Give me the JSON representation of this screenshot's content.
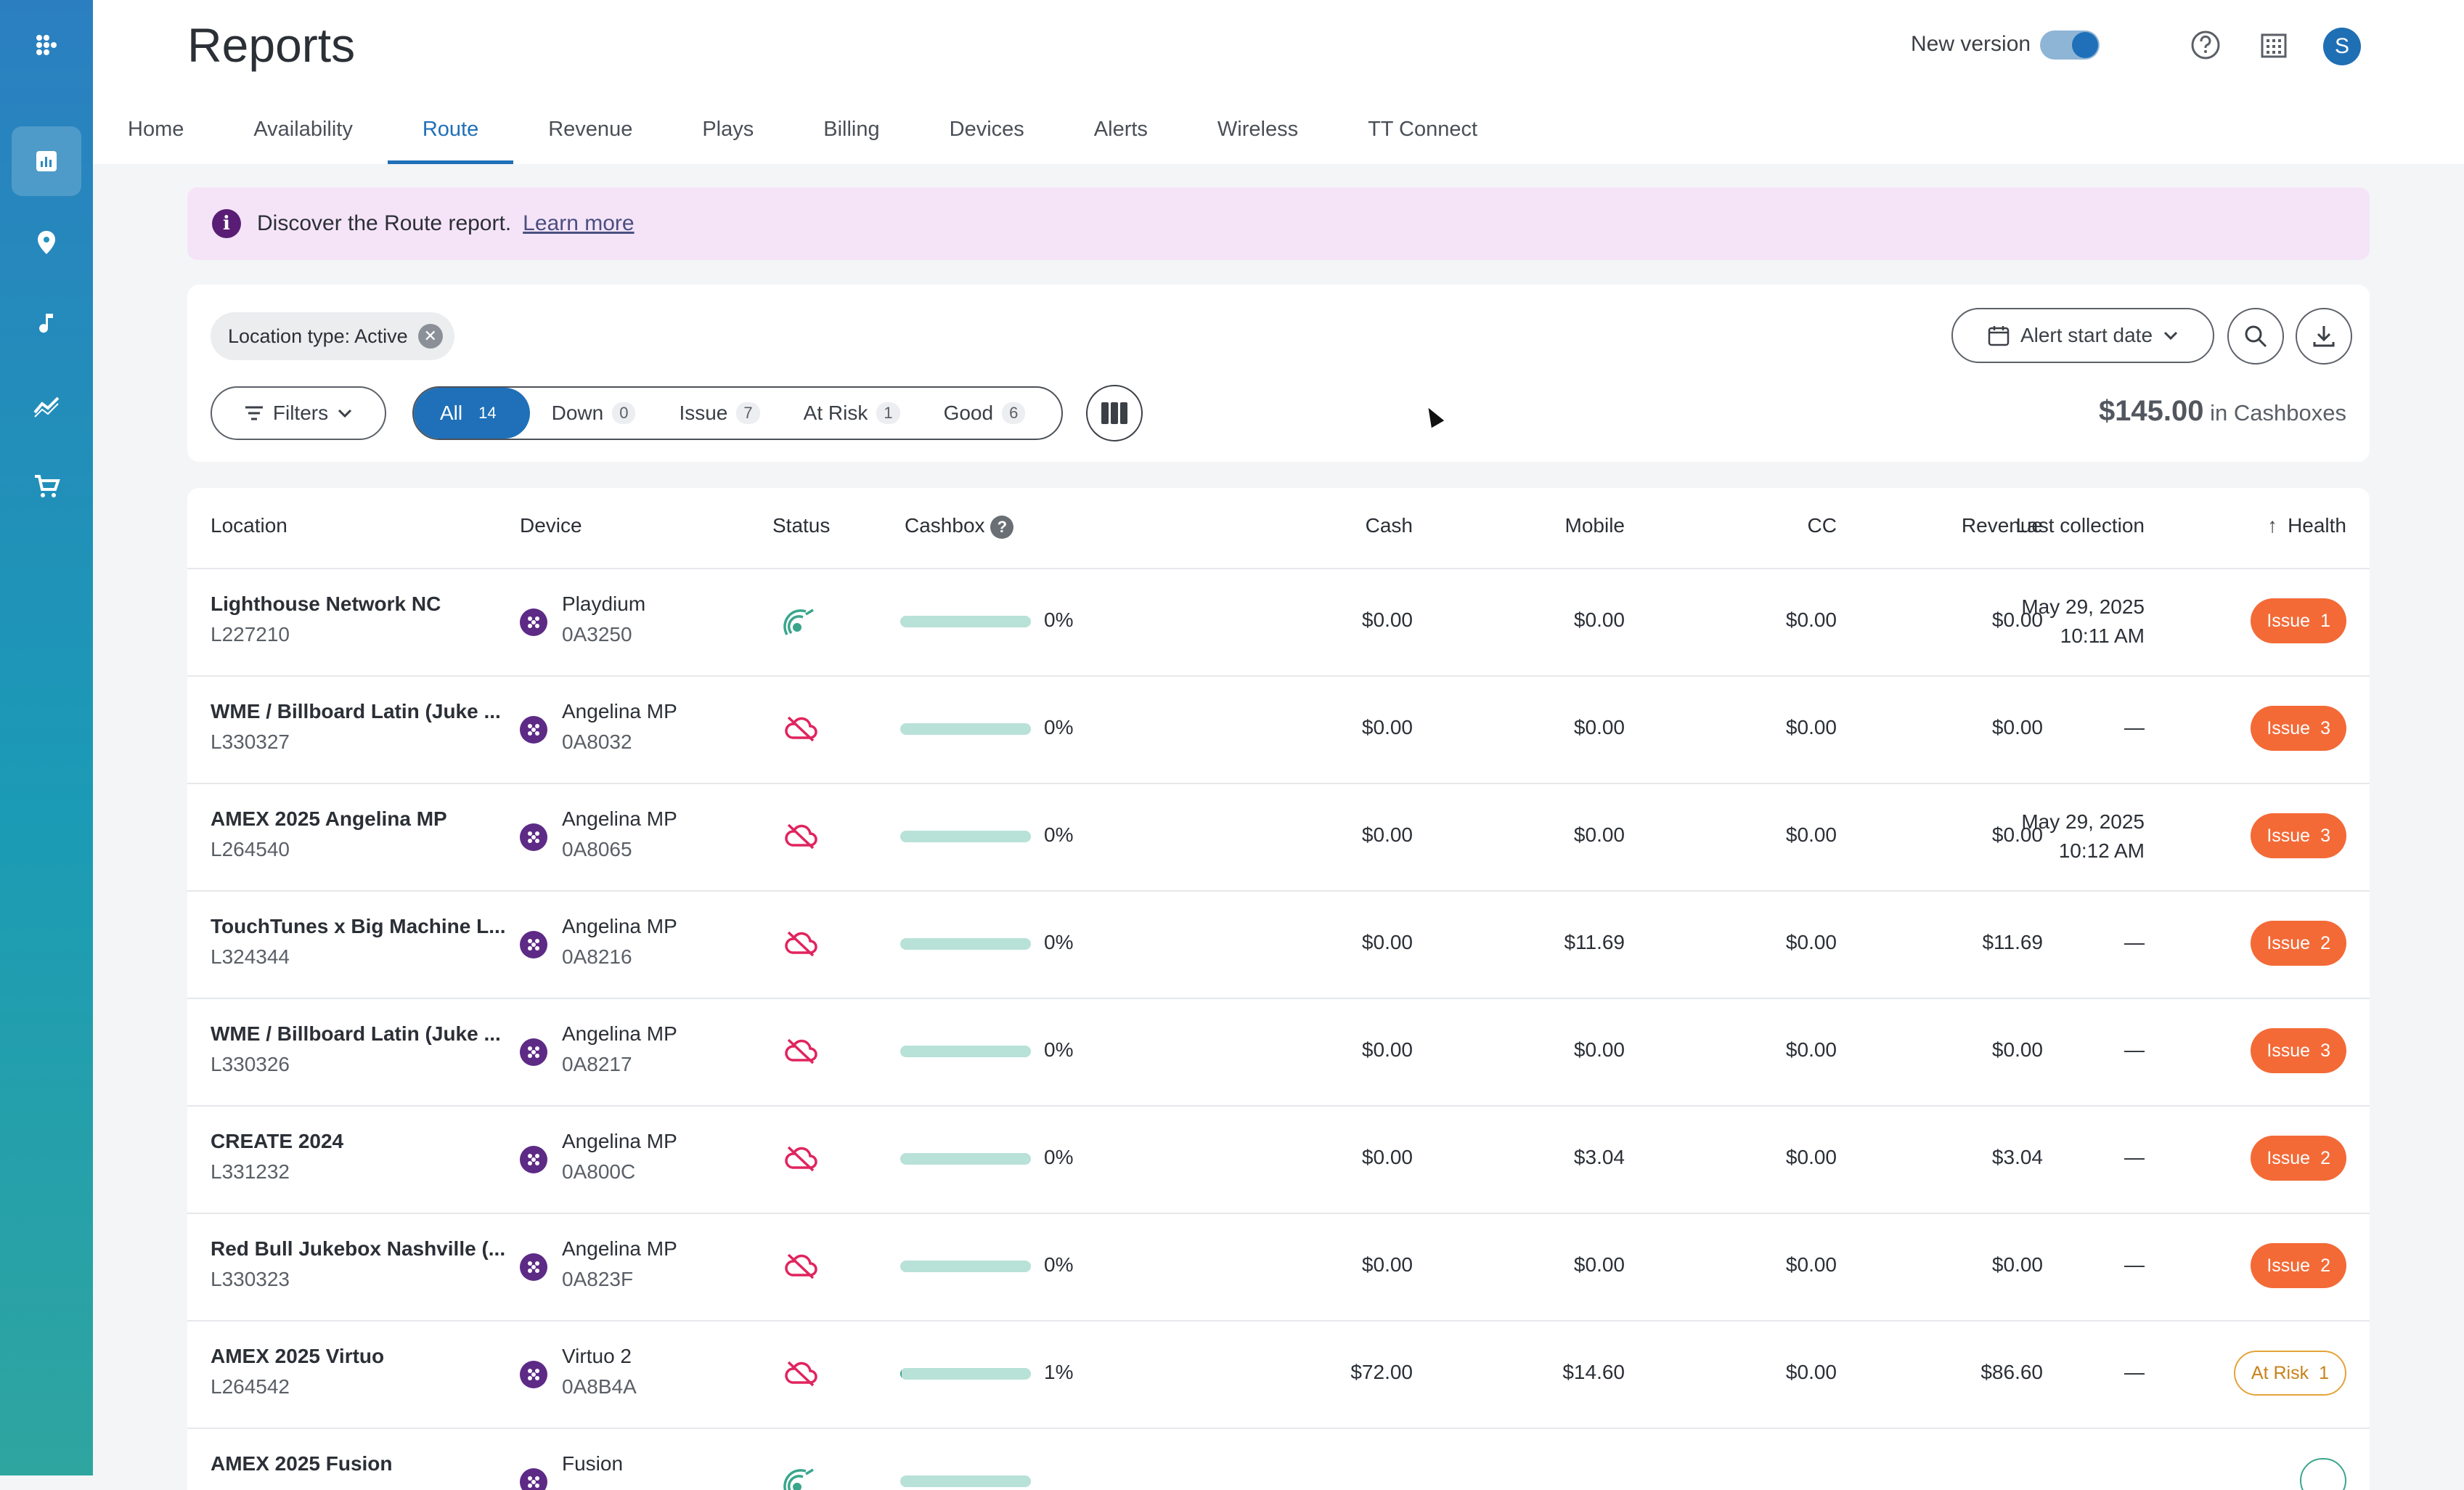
{
  "header": {
    "title": "Reports",
    "new_version_label": "New version",
    "avatar_initial": "S"
  },
  "tabs": [
    {
      "label": "Home",
      "active": false
    },
    {
      "label": "Availability",
      "active": false
    },
    {
      "label": "Route",
      "active": true
    },
    {
      "label": "Revenue",
      "active": false
    },
    {
      "label": "Plays",
      "active": false
    },
    {
      "label": "Billing",
      "active": false
    },
    {
      "label": "Devices",
      "active": false
    },
    {
      "label": "Alerts",
      "active": false
    },
    {
      "label": "Wireless",
      "active": false
    },
    {
      "label": "TT Connect",
      "active": false
    }
  ],
  "banner": {
    "text": "Discover the Route report.",
    "link": "Learn more"
  },
  "filters": {
    "chip_label": "Location type: Active",
    "filters_label": "Filters",
    "segments": [
      {
        "label": "All",
        "count": "14"
      },
      {
        "label": "Down",
        "count": "0"
      },
      {
        "label": "Issue",
        "count": "7"
      },
      {
        "label": "At Risk",
        "count": "1"
      },
      {
        "label": "Good",
        "count": "6"
      }
    ],
    "date_label": "Alert start date",
    "cashbox_amount": "$145.00",
    "cashbox_suffix": "in Cashboxes"
  },
  "table": {
    "headers": {
      "location": "Location",
      "device": "Device",
      "status": "Status",
      "cashbox": "Cashbox",
      "cash": "Cash",
      "mobile": "Mobile",
      "cc": "CC",
      "revenue": "Revenue",
      "last_collection": "Last collection",
      "health": "Health"
    },
    "rows": [
      {
        "name": "Lighthouse Network NC",
        "id": "L227210",
        "device": "Playdium",
        "device_id": "0A3250",
        "status": "online",
        "cashbox_pct": "0%",
        "cashbox_fill": 0,
        "cash": "$0.00",
        "mobile": "$0.00",
        "cc": "$0.00",
        "revenue": "$0.00",
        "last_date": "May 29, 2025",
        "last_time": "10:11 AM",
        "health": "Issue",
        "health_count": "1",
        "health_type": "issue"
      },
      {
        "name": "WME / Billboard Latin (Juke ...",
        "id": "L330327",
        "device": "Angelina MP",
        "device_id": "0A8032",
        "status": "offline",
        "cashbox_pct": "0%",
        "cashbox_fill": 0,
        "cash": "$0.00",
        "mobile": "$0.00",
        "cc": "$0.00",
        "revenue": "$0.00",
        "last_date": "—",
        "last_time": "",
        "health": "Issue",
        "health_count": "3",
        "health_type": "issue"
      },
      {
        "name": "AMEX 2025 Angelina MP",
        "id": "L264540",
        "device": "Angelina MP",
        "device_id": "0A8065",
        "status": "offline",
        "cashbox_pct": "0%",
        "cashbox_fill": 0,
        "cash": "$0.00",
        "mobile": "$0.00",
        "cc": "$0.00",
        "revenue": "$0.00",
        "last_date": "May 29, 2025",
        "last_time": "10:12 AM",
        "health": "Issue",
        "health_count": "3",
        "health_type": "issue"
      },
      {
        "name": "TouchTunes x Big Machine L...",
        "id": "L324344",
        "device": "Angelina MP",
        "device_id": "0A8216",
        "status": "offline",
        "cashbox_pct": "0%",
        "cashbox_fill": 0,
        "cash": "$0.00",
        "mobile": "$11.69",
        "cc": "$0.00",
        "revenue": "$11.69",
        "last_date": "—",
        "last_time": "",
        "health": "Issue",
        "health_count": "2",
        "health_type": "issue"
      },
      {
        "name": "WME / Billboard Latin (Juke ...",
        "id": "L330326",
        "device": "Angelina MP",
        "device_id": "0A8217",
        "status": "offline",
        "cashbox_pct": "0%",
        "cashbox_fill": 0,
        "cash": "$0.00",
        "mobile": "$0.00",
        "cc": "$0.00",
        "revenue": "$0.00",
        "last_date": "—",
        "last_time": "",
        "health": "Issue",
        "health_count": "3",
        "health_type": "issue"
      },
      {
        "name": "CREATE 2024",
        "id": "L331232",
        "device": "Angelina MP",
        "device_id": "0A800C",
        "status": "offline",
        "cashbox_pct": "0%",
        "cashbox_fill": 0,
        "cash": "$0.00",
        "mobile": "$3.04",
        "cc": "$0.00",
        "revenue": "$3.04",
        "last_date": "—",
        "last_time": "",
        "health": "Issue",
        "health_count": "2",
        "health_type": "issue"
      },
      {
        "name": "Red Bull Jukebox Nashville (...",
        "id": "L330323",
        "device": "Angelina MP",
        "device_id": "0A823F",
        "status": "offline",
        "cashbox_pct": "0%",
        "cashbox_fill": 0,
        "cash": "$0.00",
        "mobile": "$0.00",
        "cc": "$0.00",
        "revenue": "$0.00",
        "last_date": "—",
        "last_time": "",
        "health": "Issue",
        "health_count": "2",
        "health_type": "issue"
      },
      {
        "name": "AMEX 2025 Virtuo",
        "id": "L264542",
        "device": "Virtuo 2",
        "device_id": "0A8B4A",
        "status": "offline",
        "cashbox_pct": "1%",
        "cashbox_fill": 0.01,
        "cash": "$72.00",
        "mobile": "$14.60",
        "cc": "$0.00",
        "revenue": "$86.60",
        "last_date": "—",
        "last_time": "",
        "health": "At Risk",
        "health_count": "1",
        "health_type": "risk"
      },
      {
        "name": "AMEX 2025 Fusion",
        "id": "",
        "device": "Fusion",
        "device_id": "",
        "status": "online",
        "cashbox_pct": "",
        "cashbox_fill": 0,
        "cash": "",
        "mobile": "",
        "cc": "",
        "revenue": "",
        "last_date": "",
        "last_time": "",
        "health": "",
        "health_count": "",
        "health_type": "good"
      }
    ]
  },
  "colors": {
    "accent": "#1f70b8",
    "issue": "#f36a37",
    "risk": "#e4a33a",
    "good": "#3aa58c",
    "offline": "#e0245e"
  }
}
